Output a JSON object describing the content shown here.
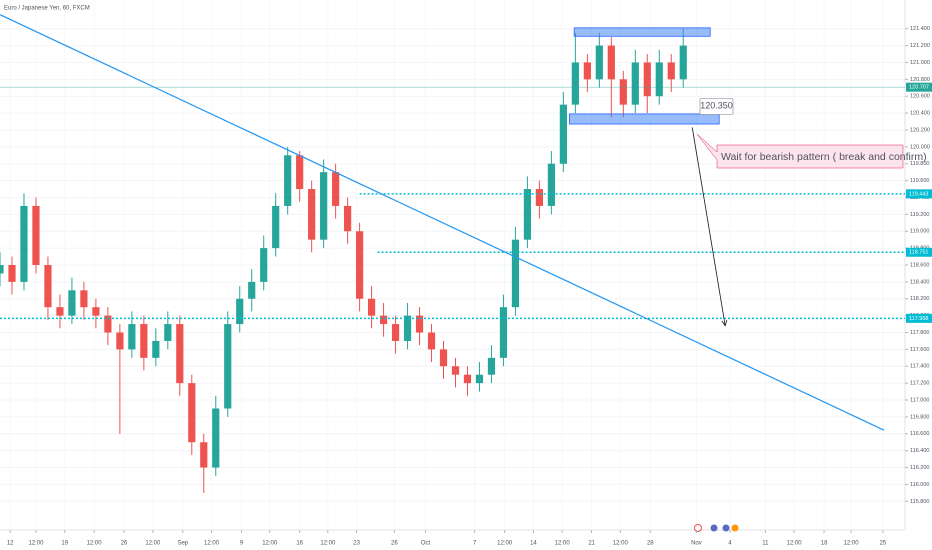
{
  "chart_data": {
    "type": "candlestick",
    "title": "Euro / Japanese Yen, 60, FXCM",
    "x": [
      0,
      2,
      4,
      6,
      8,
      10,
      12,
      14,
      16,
      18,
      20,
      22,
      24,
      26,
      28,
      30,
      32,
      34,
      36,
      38,
      40,
      42,
      44,
      46,
      48,
      50,
      52,
      54,
      56,
      58,
      60,
      62,
      64,
      66,
      68,
      70,
      72,
      74,
      76,
      78,
      80,
      82,
      84,
      86,
      88,
      90,
      92,
      94,
      96,
      98,
      100,
      102,
      104,
      106,
      108,
      110,
      112,
      114
    ],
    "open": [
      118.5,
      118.6,
      118.4,
      119.3,
      118.6,
      118.1,
      118.0,
      118.3,
      118.1,
      118.0,
      117.8,
      117.6,
      117.9,
      117.5,
      117.7,
      117.9,
      117.2,
      116.5,
      116.2,
      116.9,
      117.9,
      118.2,
      118.4,
      118.8,
      119.3,
      119.9,
      119.5,
      118.9,
      119.7,
      119.3,
      119.0,
      118.2,
      118.0,
      117.9,
      117.7,
      118.0,
      117.8,
      117.6,
      117.4,
      117.3,
      117.2,
      117.3,
      117.5,
      118.1,
      118.9,
      119.5,
      119.3,
      119.8,
      120.5,
      121.0,
      120.8,
      121.2,
      120.8,
      120.5,
      121.0,
      120.6,
      121.0,
      120.8
    ],
    "high": [
      118.75,
      118.7,
      119.45,
      119.4,
      118.7,
      118.25,
      118.45,
      118.4,
      118.2,
      118.1,
      117.9,
      118.05,
      118.0,
      117.85,
      118.05,
      118.0,
      117.3,
      116.6,
      117.05,
      118.05,
      118.35,
      118.55,
      118.95,
      119.45,
      120.0,
      119.95,
      119.6,
      119.85,
      119.8,
      119.4,
      119.1,
      118.35,
      118.15,
      118.0,
      118.15,
      118.1,
      117.9,
      117.7,
      117.5,
      117.4,
      117.45,
      117.65,
      118.25,
      119.05,
      119.65,
      119.6,
      119.95,
      120.65,
      121.35,
      121.1,
      121.35,
      121.3,
      120.9,
      121.15,
      121.1,
      121.15,
      121.1,
      121.4
    ],
    "low": [
      118.35,
      118.25,
      118.3,
      118.5,
      117.95,
      117.85,
      117.9,
      117.95,
      117.85,
      117.65,
      116.6,
      117.5,
      117.35,
      117.4,
      117.6,
      117.05,
      116.35,
      115.9,
      116.1,
      116.8,
      117.8,
      118.05,
      118.3,
      118.7,
      119.2,
      119.35,
      118.75,
      118.8,
      119.15,
      118.85,
      118.05,
      117.85,
      117.75,
      117.55,
      117.6,
      117.65,
      117.45,
      117.25,
      117.15,
      117.05,
      117.1,
      117.2,
      117.4,
      118.0,
      118.8,
      119.15,
      119.2,
      119.7,
      120.4,
      120.65,
      120.7,
      120.35,
      120.35,
      120.4,
      120.4,
      120.5,
      120.65,
      120.7
    ],
    "close": [
      118.6,
      118.4,
      119.3,
      118.6,
      118.1,
      118.0,
      118.3,
      118.1,
      118.0,
      117.8,
      117.6,
      117.9,
      117.5,
      117.7,
      117.9,
      117.2,
      116.5,
      116.2,
      116.9,
      117.9,
      118.2,
      118.4,
      118.8,
      119.3,
      119.9,
      119.5,
      118.9,
      119.7,
      119.3,
      119.0,
      118.2,
      118.0,
      117.9,
      117.7,
      118.0,
      117.8,
      117.6,
      117.4,
      117.3,
      117.2,
      117.3,
      117.5,
      118.1,
      118.9,
      119.5,
      119.3,
      119.8,
      120.5,
      121.0,
      120.8,
      121.2,
      120.8,
      120.5,
      121.0,
      120.6,
      121.0,
      120.8,
      121.2
    ],
    "up_color": "#26a69a",
    "down_color": "#ef5350",
    "xlim": [
      0,
      151
    ],
    "ylim": [
      115.46,
      121.74
    ],
    "grid": true,
    "yticks": [
      {
        "value": 115.8,
        "label": "115.800"
      },
      {
        "value": 116.0,
        "label": "116.000"
      },
      {
        "value": 116.2,
        "label": "116.200"
      },
      {
        "value": 116.4,
        "label": "116.400"
      },
      {
        "value": 116.6,
        "label": "116.600"
      },
      {
        "value": 116.8,
        "label": "116.800"
      },
      {
        "value": 117.0,
        "label": "117.000"
      },
      {
        "value": 117.2,
        "label": "117.200"
      },
      {
        "value": 117.4,
        "label": "117.400"
      },
      {
        "value": 117.6,
        "label": "117.600"
      },
      {
        "value": 117.8,
        "label": "117.800"
      },
      {
        "value": 118.0,
        "label": "118.000"
      },
      {
        "value": 118.2,
        "label": "118.200"
      },
      {
        "value": 118.4,
        "label": "118.400"
      },
      {
        "value": 118.6,
        "label": "118.600"
      },
      {
        "value": 118.8,
        "label": "118.800"
      },
      {
        "value": 119.0,
        "label": "119.000"
      },
      {
        "value": 119.2,
        "label": "119.200"
      },
      {
        "value": 119.4,
        "label": "119.400"
      },
      {
        "value": 119.6,
        "label": "119.600"
      },
      {
        "value": 119.8,
        "label": "119.800"
      },
      {
        "value": 120.0,
        "label": "120.000"
      },
      {
        "value": 120.2,
        "label": "120.200"
      },
      {
        "value": 120.4,
        "label": "120.400"
      },
      {
        "value": 120.6,
        "label": "120.600"
      },
      {
        "value": 120.8,
        "label": "120.800"
      },
      {
        "value": 121.0,
        "label": "121.000"
      },
      {
        "value": 121.2,
        "label": "121.200"
      },
      {
        "value": 121.4,
        "label": "121.400"
      }
    ],
    "xticks": [
      {
        "value": 1.7,
        "label": "12"
      },
      {
        "value": 6,
        "label": "12:00"
      },
      {
        "value": 10.8,
        "label": "19"
      },
      {
        "value": 15.7,
        "label": "12:00"
      },
      {
        "value": 20.7,
        "label": "26"
      },
      {
        "value": 25.5,
        "label": "12:00"
      },
      {
        "value": 30.5,
        "label": "Sep"
      },
      {
        "value": 35.3,
        "label": "12:00"
      },
      {
        "value": 40.3,
        "label": "9"
      },
      {
        "value": 45,
        "label": "12:00"
      },
      {
        "value": 50,
        "label": "16"
      },
      {
        "value": 54.7,
        "label": "12:00"
      },
      {
        "value": 59.5,
        "label": "23"
      },
      {
        "value": 65.8,
        "label": "26"
      },
      {
        "value": 71,
        "label": "Oct"
      },
      {
        "value": 79.2,
        "label": "7"
      },
      {
        "value": 84.2,
        "label": "12:00"
      },
      {
        "value": 89,
        "label": "14"
      },
      {
        "value": 93.8,
        "label": "12:00"
      },
      {
        "value": 98.7,
        "label": "21"
      },
      {
        "value": 103.5,
        "label": "12:00"
      },
      {
        "value": 108.5,
        "label": "28"
      },
      {
        "value": 116.2,
        "label": "Nov"
      },
      {
        "value": 121.8,
        "label": "4"
      },
      {
        "value": 127.7,
        "label": "11"
      },
      {
        "value": 132.5,
        "label": "12:00"
      },
      {
        "value": 137.5,
        "label": "18"
      },
      {
        "value": 142,
        "label": "12:00"
      },
      {
        "value": 147.3,
        "label": "25"
      }
    ],
    "price_labels": [
      {
        "value": 120.707,
        "label": "120.707",
        "color": "#26a69a",
        "line_from": 0,
        "style": "solid"
      },
      {
        "value": 119.443,
        "label": "119.443",
        "color": "#00bcd4",
        "line_from": 60,
        "style": "dotted"
      },
      {
        "value": 118.751,
        "label": "118.751",
        "color": "#00bcd4",
        "line_from": 63,
        "style": "dotted"
      },
      {
        "value": 117.968,
        "label": "117.968",
        "color": "#00bcd4",
        "line_from": 0,
        "style": "dotted"
      }
    ],
    "trend_line": {
      "x": [
        0,
        147.5
      ],
      "y": [
        121.566,
        116.643
      ],
      "color": "#2196f3"
    },
    "boxes": [
      {
        "x": [
          95.8,
          118.5
        ],
        "y": [
          121.31,
          121.41
        ]
      },
      {
        "x": [
          95,
          120
        ],
        "y": [
          120.27,
          120.39
        ]
      }
    ],
    "level_label": {
      "value": 120.35,
      "label": "120.350"
    },
    "arrow": {
      "x": [
        115.5,
        121
      ],
      "y": [
        120.23,
        117.88
      ]
    },
    "note": "Wait for bearish pattern ( break and confirm)"
  }
}
